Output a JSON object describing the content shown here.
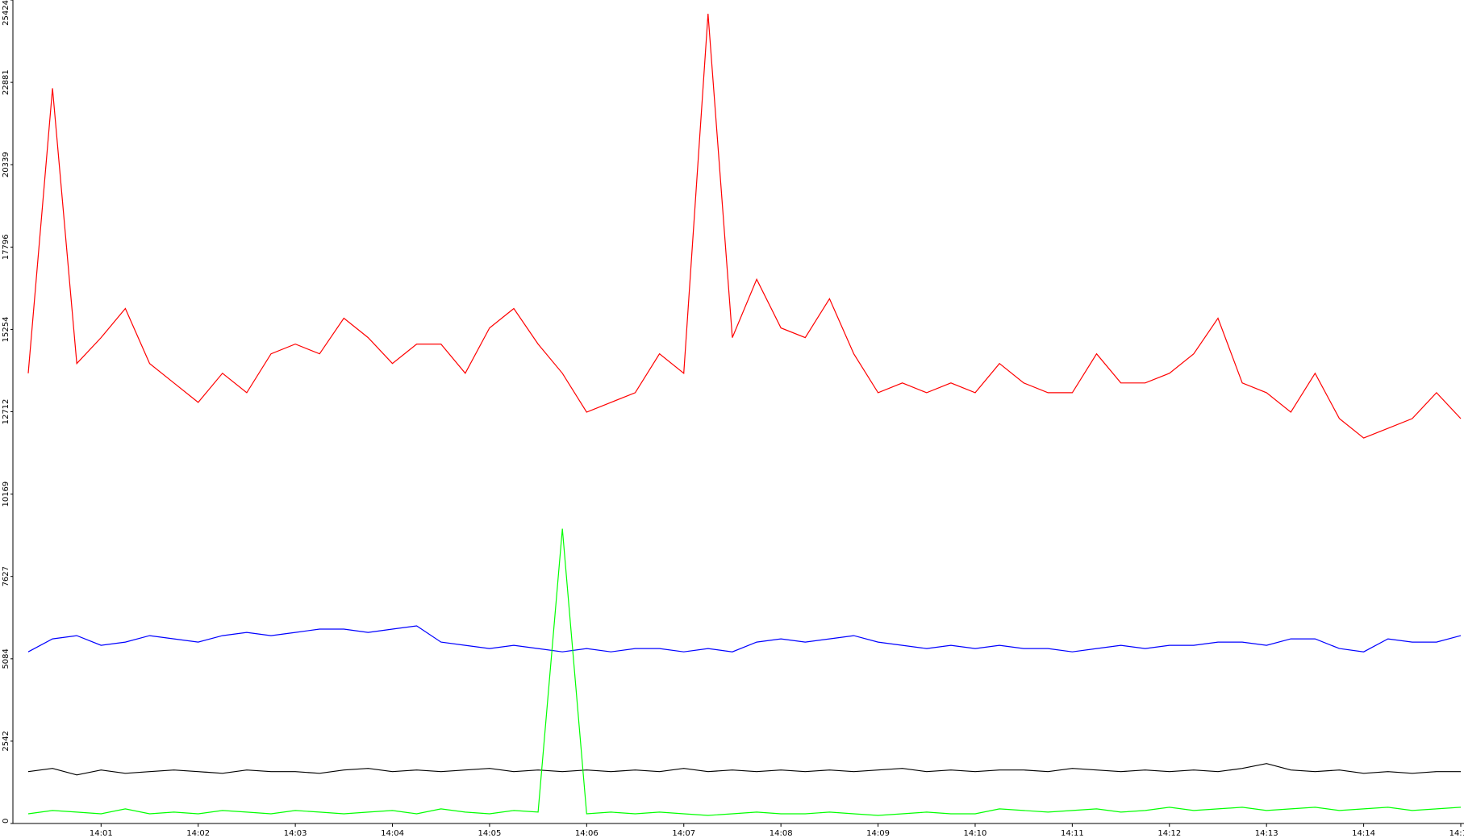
{
  "chart_data": {
    "type": "line",
    "categories": [
      null,
      null,
      null,
      "14:01",
      null,
      null,
      null,
      "14:02",
      null,
      null,
      null,
      "14:03",
      null,
      null,
      null,
      "14:04",
      null,
      null,
      null,
      "14:05",
      null,
      null,
      null,
      "14:06",
      null,
      null,
      null,
      "14:07",
      null,
      null,
      null,
      "14:08",
      null,
      null,
      null,
      "14:09",
      null,
      null,
      null,
      "14:10",
      null,
      null,
      null,
      "14:11",
      null,
      null,
      null,
      "14:12",
      null,
      null,
      null,
      "14:13",
      null,
      null,
      null,
      "14:14",
      null,
      null,
      null,
      "14:15"
    ],
    "series": [
      {
        "color": "#ff0000",
        "values": [
          13900,
          22700,
          14200,
          15000,
          15900,
          14200,
          13600,
          13000,
          13900,
          13300,
          14500,
          14800,
          14500,
          15600,
          15000,
          14200,
          14800,
          14800,
          13900,
          15300,
          15900,
          14800,
          13900,
          12700,
          13000,
          13300,
          14500,
          13900,
          25000,
          15000,
          16800,
          15300,
          15000,
          16200,
          14500,
          13300,
          13600,
          13300,
          13600,
          13300,
          14200,
          13600,
          13300,
          13300,
          14500,
          13600,
          13600,
          13900,
          14500,
          15600,
          13600,
          13300,
          12700,
          13900,
          12500,
          11900,
          12200,
          12500,
          13300,
          12500
        ]
      },
      {
        "color": "#0000ff",
        "values": [
          5300,
          5700,
          5800,
          5500,
          5600,
          5800,
          5700,
          5600,
          5800,
          5900,
          5800,
          5900,
          6000,
          6000,
          5900,
          6000,
          6100,
          5600,
          5500,
          5400,
          5500,
          5400,
          5300,
          5400,
          5300,
          5400,
          5400,
          5300,
          5400,
          5300,
          5600,
          5700,
          5600,
          5700,
          5800,
          5600,
          5500,
          5400,
          5500,
          5400,
          5500,
          5400,
          5400,
          5300,
          5400,
          5500,
          5400,
          5500,
          5500,
          5600,
          5600,
          5500,
          5700,
          5700,
          5400,
          5300,
          5700,
          5600,
          5600,
          5800
        ]
      },
      {
        "color": "#000000",
        "values": [
          1600,
          1700,
          1500,
          1650,
          1550,
          1600,
          1650,
          1600,
          1550,
          1650,
          1600,
          1600,
          1550,
          1650,
          1700,
          1600,
          1650,
          1600,
          1650,
          1700,
          1600,
          1650,
          1600,
          1650,
          1600,
          1650,
          1600,
          1700,
          1600,
          1650,
          1600,
          1650,
          1600,
          1650,
          1600,
          1650,
          1700,
          1600,
          1650,
          1600,
          1650,
          1650,
          1600,
          1700,
          1650,
          1600,
          1650,
          1600,
          1650,
          1600,
          1700,
          1850,
          1650,
          1600,
          1650,
          1550,
          1600,
          1550,
          1600,
          1600
        ]
      },
      {
        "color": "#00ff00",
        "values": [
          300,
          400,
          350,
          300,
          450,
          300,
          350,
          300,
          400,
          350,
          300,
          400,
          350,
          300,
          350,
          400,
          300,
          450,
          350,
          300,
          400,
          350,
          9100,
          300,
          350,
          300,
          350,
          300,
          250,
          300,
          350,
          300,
          300,
          350,
          300,
          250,
          300,
          350,
          300,
          300,
          450,
          400,
          350,
          400,
          450,
          350,
          400,
          500,
          400,
          450,
          500,
          400,
          450,
          500,
          400,
          450,
          500,
          400,
          450,
          500
        ]
      }
    ],
    "ylim": [
      0,
      25424
    ],
    "yticks": [
      0,
      2542,
      5084,
      7627,
      10169,
      12712,
      15254,
      17796,
      20339,
      22881,
      25424
    ]
  }
}
